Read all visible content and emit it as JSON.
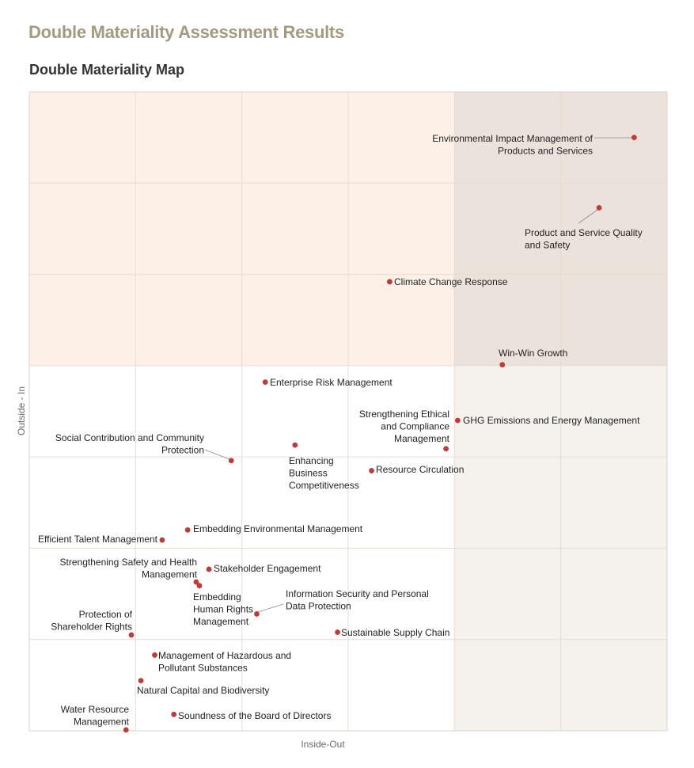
{
  "page": {
    "title": "Double Materiality Assessment Results"
  },
  "chart_data": {
    "type": "scatter",
    "title": "Double Materiality Map",
    "xlabel": "Inside-Out",
    "ylabel": "Outside - In",
    "xlim": [
      0,
      6
    ],
    "ylim": [
      0,
      7
    ],
    "grid": true,
    "zones": {
      "high_outside_in_color": "#fdf1e7",
      "high_both_color": "#ece2dc",
      "high_inside_out_color": "#f5f1ec",
      "low_color": "#ffffff",
      "gridline_color": "#e6dcd3",
      "point_color": "#c23a36"
    },
    "points": [
      {
        "name": "Environmental Impact Management of Products and Services",
        "x": 5.69,
        "y": 6.5
      },
      {
        "name": "Product and Service Quality and Safety",
        "x": 5.36,
        "y": 5.73
      },
      {
        "name": "Climate Change Response",
        "x": 3.39,
        "y": 4.92
      },
      {
        "name": "Win-Win Growth",
        "x": 4.45,
        "y": 4.01
      },
      {
        "name": "Enterprise Risk Management",
        "x": 2.22,
        "y": 3.82
      },
      {
        "name": "GHG Emissions and Energy Management",
        "x": 4.03,
        "y": 3.4
      },
      {
        "name": "Strengthening Ethical and Compliance Management",
        "x": 3.92,
        "y": 3.09
      },
      {
        "name": "Enhancing Business Competitiveness",
        "x": 2.5,
        "y": 3.13
      },
      {
        "name": "Social Contribution and Community Protection",
        "x": 1.9,
        "y": 2.96
      },
      {
        "name": "Resource Circulation",
        "x": 3.22,
        "y": 2.85
      },
      {
        "name": "Embedding Environmental Management",
        "x": 1.49,
        "y": 2.2
      },
      {
        "name": "Efficient Talent Management",
        "x": 1.25,
        "y": 2.09
      },
      {
        "name": "Stakeholder Engagement",
        "x": 1.69,
        "y": 1.77
      },
      {
        "name": "Strengthening Safety and Health Management",
        "x": 1.57,
        "y": 1.63
      },
      {
        "name": "Embedding Human Rights Management",
        "x": 1.6,
        "y": 1.59
      },
      {
        "name": "Information Security and Personal Data Protection",
        "x": 2.14,
        "y": 1.28
      },
      {
        "name": "Sustainable Supply Chain",
        "x": 2.9,
        "y": 1.08
      },
      {
        "name": "Protection of Shareholder Rights",
        "x": 0.96,
        "y": 1.05
      },
      {
        "name": "Management of Hazardous and Pollutant Substances",
        "x": 1.18,
        "y": 0.83
      },
      {
        "name": "Natural Capital and Biodiversity",
        "x": 1.05,
        "y": 0.55
      },
      {
        "name": "Soundness of the Board of Directors",
        "x": 1.36,
        "y": 0.18
      },
      {
        "name": "Water Resource Management",
        "x": 0.91,
        "y": 0.01
      }
    ]
  }
}
